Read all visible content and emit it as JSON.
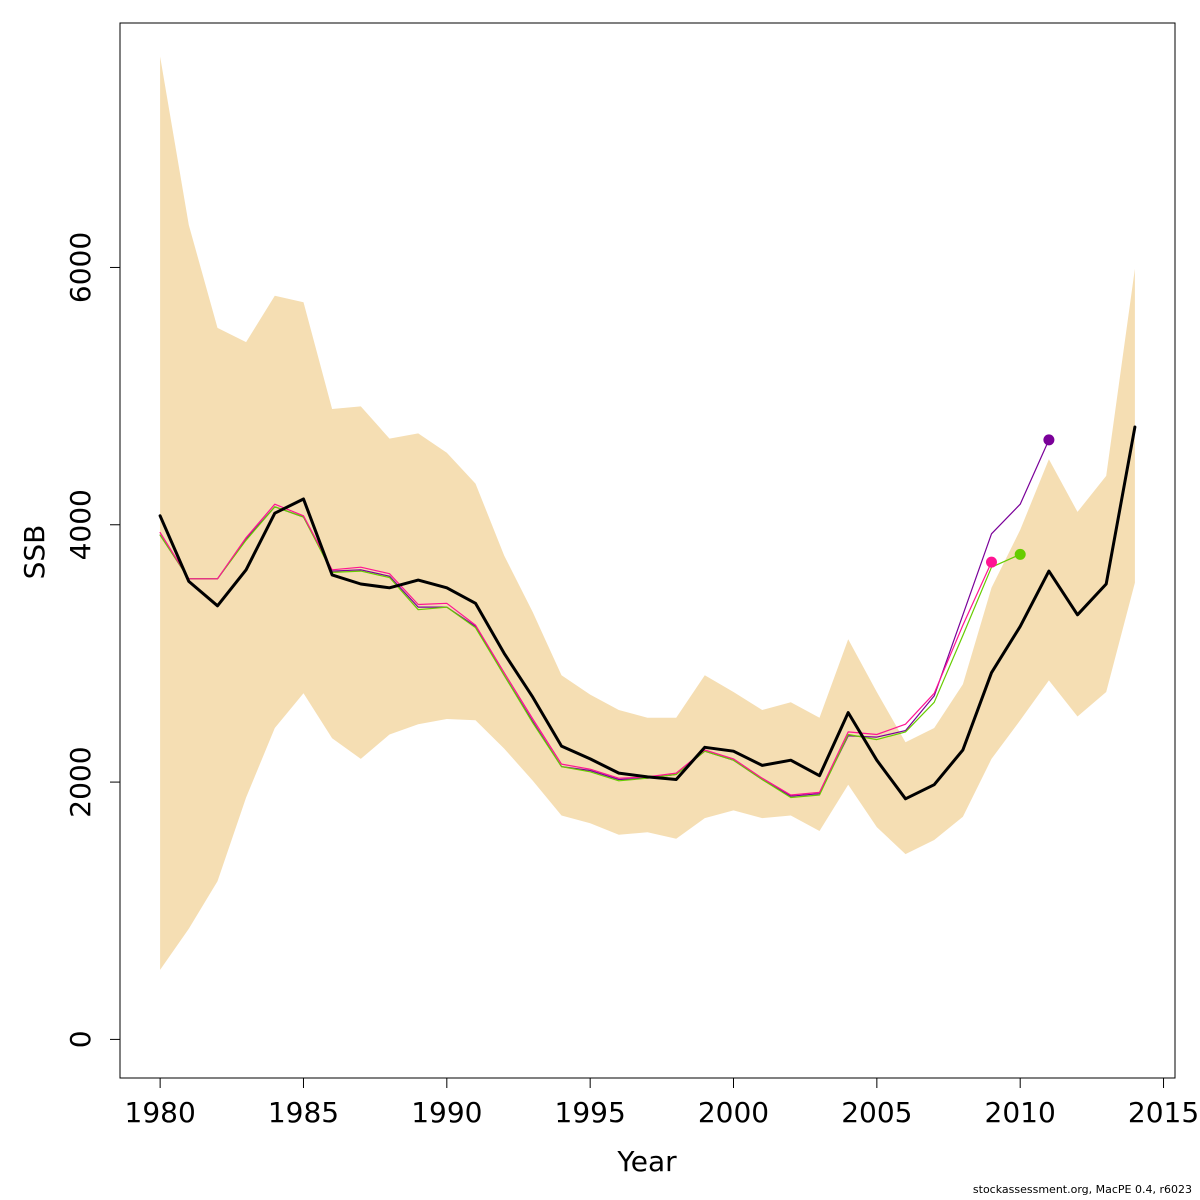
{
  "chart_data": {
    "type": "line",
    "title": "",
    "xlabel": "Year",
    "ylabel": "SSB",
    "xlim": [
      1978.6,
      2015.4
    ],
    "ylim": [
      -300,
      7900
    ],
    "x_ticks": [
      1980,
      1985,
      1990,
      1995,
      2000,
      2005,
      2010,
      2015
    ],
    "y_ticks": [
      0,
      2000,
      4000,
      6000
    ],
    "grid": false,
    "legend": "none",
    "band": {
      "color": "#f5deb3",
      "x": [
        1980,
        1981,
        1982,
        1983,
        1984,
        1985,
        1986,
        1987,
        1988,
        1989,
        1990,
        1991,
        1992,
        1993,
        1994,
        1995,
        1996,
        1997,
        1998,
        1999,
        2000,
        2001,
        2002,
        2003,
        2004,
        2005,
        2006,
        2007,
        2008,
        2009,
        2010,
        2011,
        2012,
        2013,
        2014
      ],
      "lower": [
        540,
        860,
        1230,
        1880,
        2420,
        2690,
        2340,
        2180,
        2370,
        2450,
        2490,
        2480,
        2260,
        2010,
        1740,
        1680,
        1590,
        1610,
        1560,
        1720,
        1780,
        1720,
        1740,
        1620,
        1980,
        1650,
        1440,
        1550,
        1730,
        2180,
        2480,
        2790,
        2510,
        2700,
        3550
      ],
      "upper": [
        7640,
        6330,
        5530,
        5420,
        5780,
        5730,
        4900,
        4920,
        4670,
        4710,
        4560,
        4320,
        3760,
        3320,
        2830,
        2680,
        2560,
        2500,
        2500,
        2830,
        2700,
        2560,
        2620,
        2500,
        3110,
        2700,
        2310,
        2420,
        2760,
        3510,
        3960,
        4510,
        4100,
        4380,
        5990
      ]
    },
    "series": [
      {
        "role": "estimate",
        "color": "#000000",
        "width": 3,
        "x": [
          1980,
          1981,
          1982,
          1983,
          1984,
          1985,
          1986,
          1987,
          1988,
          1989,
          1990,
          1991,
          1992,
          1993,
          1994,
          1995,
          1996,
          1997,
          1998,
          1999,
          2000,
          2001,
          2002,
          2003,
          2004,
          2005,
          2006,
          2007,
          2008,
          2009,
          2010,
          2011,
          2012,
          2013,
          2014
        ],
        "values": [
          4070,
          3560,
          3370,
          3650,
          4090,
          4200,
          3610,
          3540,
          3510,
          3570,
          3510,
          3390,
          3000,
          2660,
          2280,
          2180,
          2070,
          2040,
          2020,
          2270,
          2240,
          2130,
          2170,
          2050,
          2540,
          2170,
          1870,
          1980,
          2250,
          2850,
          3210,
          3640,
          3300,
          3540,
          4760
        ]
      },
      {
        "role": "retrospective-peel-3",
        "color": "#7a0099",
        "width": 1.2,
        "x": [
          1980,
          1981,
          1982,
          1983,
          1984,
          1985,
          1986,
          1987,
          1988,
          1989,
          1990,
          1991,
          1992,
          1993,
          1994,
          1995,
          1996,
          1997,
          1998,
          1999,
          2000,
          2001,
          2002,
          2003,
          2004,
          2005,
          2006,
          2007,
          2008,
          2009,
          2010,
          2011
        ],
        "values": [
          3920,
          3580,
          3580,
          3890,
          4140,
          4060,
          3640,
          3650,
          3600,
          3360,
          3360,
          3210,
          2830,
          2470,
          2120,
          2090,
          2020,
          2030,
          2060,
          2240,
          2170,
          2020,
          1890,
          1910,
          2360,
          2350,
          2400,
          2670,
          3300,
          3930,
          4160,
          4660
        ],
        "endpoint": [
          2011,
          4660
        ]
      },
      {
        "role": "retrospective-peel-4",
        "color": "#66cc00",
        "width": 1.2,
        "x": [
          1980,
          1981,
          1982,
          1983,
          1984,
          1985,
          1986,
          1987,
          1988,
          1989,
          1990,
          1991,
          1992,
          1993,
          1994,
          1995,
          1996,
          1997,
          1998,
          1999,
          2000,
          2001,
          2002,
          2003,
          2004,
          2005,
          2006,
          2007,
          2008,
          2009,
          2010
        ],
        "values": [
          3920,
          3580,
          3580,
          3880,
          4140,
          4060,
          3630,
          3640,
          3590,
          3340,
          3360,
          3200,
          2830,
          2460,
          2120,
          2080,
          2010,
          2030,
          2060,
          2240,
          2170,
          2020,
          1880,
          1900,
          2370,
          2330,
          2390,
          2620,
          3140,
          3670,
          3770
        ],
        "endpoint": [
          2010,
          3770
        ]
      },
      {
        "role": "retrospective-peel-5",
        "color": "#ff1493",
        "width": 1.2,
        "x": [
          1980,
          1981,
          1982,
          1983,
          1984,
          1985,
          1986,
          1987,
          1988,
          1989,
          1990,
          1991,
          1992,
          1993,
          1994,
          1995,
          1996,
          1997,
          1998,
          1999,
          2000,
          2001,
          2002,
          2003,
          2004,
          2005,
          2006,
          2007,
          2008,
          2009
        ],
        "values": [
          3940,
          3580,
          3580,
          3900,
          4160,
          4070,
          3650,
          3670,
          3620,
          3380,
          3390,
          3220,
          2850,
          2490,
          2140,
          2100,
          2030,
          2040,
          2070,
          2250,
          2180,
          2030,
          1900,
          1920,
          2390,
          2370,
          2450,
          2690,
          3220,
          3710
        ],
        "endpoint": [
          2009,
          3710
        ]
      }
    ]
  },
  "footer": {
    "note": "stockassessment.org, MacPE 0.4, r6023"
  }
}
